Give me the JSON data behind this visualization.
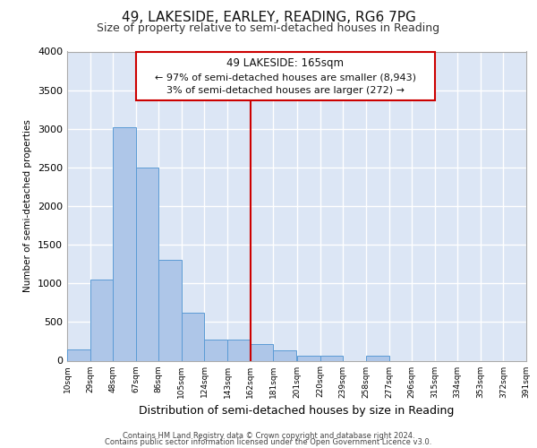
{
  "title": "49, LAKESIDE, EARLEY, READING, RG6 7PG",
  "subtitle": "Size of property relative to semi-detached houses in Reading",
  "xlabel": "Distribution of semi-detached houses by size in Reading",
  "ylabel": "Number of semi-detached properties",
  "footer_line1": "Contains HM Land Registry data © Crown copyright and database right 2024.",
  "footer_line2": "Contains public sector information licensed under the Open Government Licence v3.0.",
  "annotation_title": "49 LAKESIDE: 165sqm",
  "annotation_line2": "← 97% of semi-detached houses are smaller (8,943)",
  "annotation_line3": "3% of semi-detached houses are larger (272) →",
  "bin_edges": [
    10,
    29,
    48,
    67,
    86,
    105,
    124,
    143,
    162,
    181,
    201,
    220,
    239,
    258,
    277,
    296,
    315,
    334,
    353,
    372,
    391
  ],
  "bin_labels": [
    "10sqm",
    "29sqm",
    "48sqm",
    "67sqm",
    "86sqm",
    "105sqm",
    "124sqm",
    "143sqm",
    "162sqm",
    "181sqm",
    "201sqm",
    "220sqm",
    "239sqm",
    "258sqm",
    "277sqm",
    "296sqm",
    "315sqm",
    "334sqm",
    "353sqm",
    "372sqm",
    "391sqm"
  ],
  "bar_heights": [
    150,
    1050,
    3020,
    2500,
    1300,
    620,
    270,
    270,
    210,
    130,
    60,
    60,
    0,
    60,
    0,
    0,
    0,
    0,
    0,
    0
  ],
  "bar_color": "#aec6e8",
  "bar_edge_color": "#5b9bd5",
  "vline_color": "#cc0000",
  "vline_x": 162,
  "ylim": [
    0,
    4000
  ],
  "yticks": [
    0,
    500,
    1000,
    1500,
    2000,
    2500,
    3000,
    3500,
    4000
  ],
  "axes_background": "#dce6f5",
  "grid_color": "#ffffff",
  "title_fontsize": 11,
  "subtitle_fontsize": 9,
  "xlabel_fontsize": 9,
  "ylabel_fontsize": 7.5,
  "annotation_box_edge": "#cc0000"
}
